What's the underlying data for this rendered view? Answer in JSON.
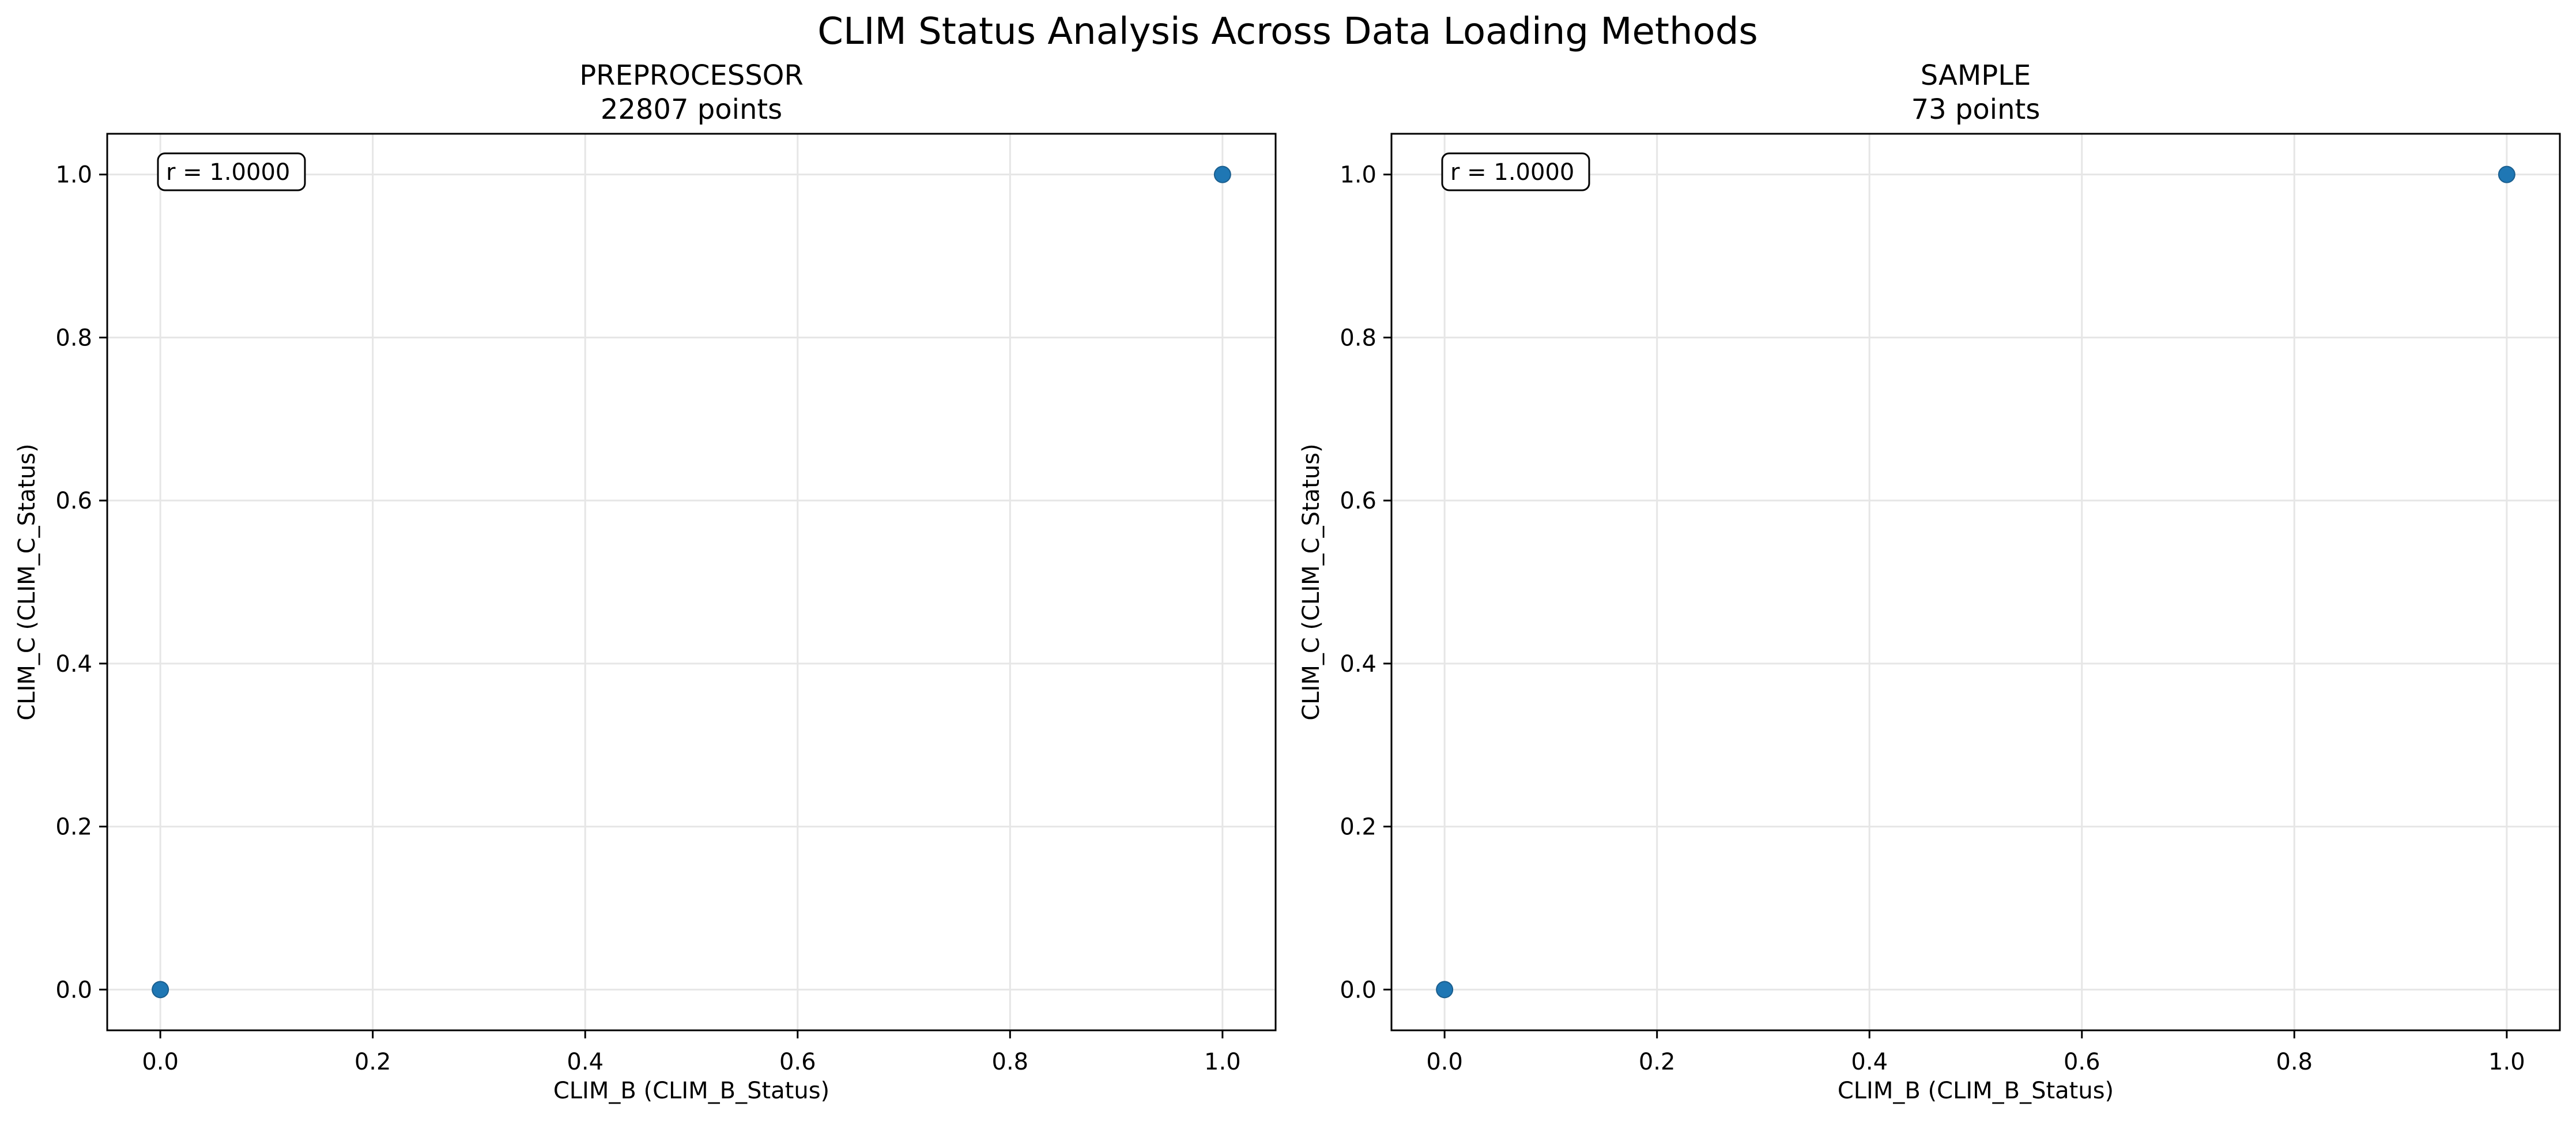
{
  "figure": {
    "suptitle": "CLIM Status Analysis Across Data Loading Methods"
  },
  "chart_data": [
    {
      "type": "scatter",
      "title_line1": "PREPROCESSOR",
      "title_line2": "22807 points",
      "xlabel": "CLIM_B (CLIM_B_Status)",
      "ylabel": "CLIM_C (CLIM_C_Status)",
      "xlim": [
        -0.05,
        1.05
      ],
      "ylim": [
        -0.05,
        1.05
      ],
      "xticks": [
        0.0,
        0.2,
        0.4,
        0.6,
        0.8,
        1.0
      ],
      "xtick_labels": [
        "0.0",
        "0.2",
        "0.4",
        "0.6",
        "0.8",
        "1.0"
      ],
      "yticks": [
        0.0,
        0.2,
        0.4,
        0.6,
        0.8,
        1.0
      ],
      "ytick_labels": [
        "0.0",
        "0.2",
        "0.4",
        "0.6",
        "0.8",
        "1.0"
      ],
      "grid": true,
      "annotation": "r = 1.0000",
      "marker_color": "#1f77b4",
      "points": [
        {
          "x": 0.0,
          "y": 0.0
        },
        {
          "x": 1.0,
          "y": 1.0
        }
      ]
    },
    {
      "type": "scatter",
      "title_line1": "SAMPLE",
      "title_line2": "73 points",
      "xlabel": "CLIM_B (CLIM_B_Status)",
      "ylabel": "CLIM_C (CLIM_C_Status)",
      "xlim": [
        -0.05,
        1.05
      ],
      "ylim": [
        -0.05,
        1.05
      ],
      "xticks": [
        0.0,
        0.2,
        0.4,
        0.6,
        0.8,
        1.0
      ],
      "xtick_labels": [
        "0.0",
        "0.2",
        "0.4",
        "0.6",
        "0.8",
        "1.0"
      ],
      "yticks": [
        0.0,
        0.2,
        0.4,
        0.6,
        0.8,
        1.0
      ],
      "ytick_labels": [
        "0.0",
        "0.2",
        "0.4",
        "0.6",
        "0.8",
        "1.0"
      ],
      "grid": true,
      "annotation": "r = 1.0000",
      "marker_color": "#1f77b4",
      "points": [
        {
          "x": 0.0,
          "y": 0.0
        },
        {
          "x": 1.0,
          "y": 1.0
        }
      ]
    }
  ]
}
